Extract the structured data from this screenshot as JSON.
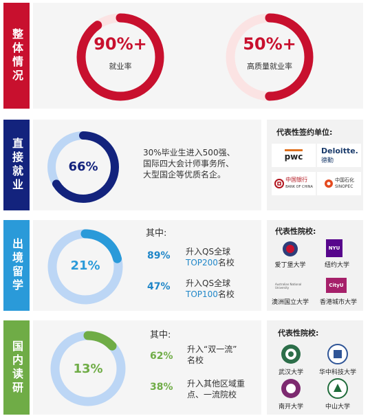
{
  "sections": {
    "overall": {
      "label": "整体情况",
      "color": "#c8102e",
      "ring1": {
        "value": "90%+",
        "caption": "就业率",
        "fraction": 0.9
      },
      "ring2": {
        "value": "50%+",
        "caption": "高质量就业率",
        "fraction": 0.5
      }
    },
    "employment": {
      "label": "直接就业",
      "color": "#13237d",
      "ring": {
        "value": "66%",
        "fraction": 0.66
      },
      "desc": [
        "30%毕业生进入500强、",
        "国际四大会计师事务所、",
        "大型国企等优质名企。"
      ],
      "box_title": "代表性签约单位:",
      "logos": {
        "pwc": "pwc",
        "deloitte": "Deloitte.",
        "deloitte_cn": "德勤",
        "boc_cn": "中国银行",
        "boc_en": "BANK OF CHINA",
        "sinopec_cn": "中国石化",
        "sinopec_en": "SINOPEC"
      }
    },
    "abroad": {
      "label": "出境留学",
      "color": "#2a9ad9",
      "ring": {
        "value": "21%",
        "fraction": 0.21
      },
      "of_which": "其中:",
      "items": [
        {
          "pct": "89%",
          "line1": "升入QS全球",
          "line2_hl": "TOP200",
          "line2_rest": "名校"
        },
        {
          "pct": "47%",
          "line1": "升入QS全球",
          "line2_hl": "TOP100",
          "line2_rest": "名校"
        }
      ],
      "box_title": "代表性院校:",
      "unis": [
        "爱丁堡大学",
        "纽约大学",
        "澳洲国立大学",
        "香港城市大学"
      ],
      "logo_text": {
        "nyu": "NYU",
        "anu": "Australian National University",
        "cityu": "CityU"
      }
    },
    "domestic": {
      "label": "国内读研",
      "color": "#6fac46",
      "ring": {
        "value": "13%",
        "fraction": 0.13
      },
      "of_which": "其中:",
      "items": [
        {
          "pct": "62%",
          "line1": "升入“双一流”",
          "line2": "名校"
        },
        {
          "pct": "38%",
          "line1": "升入其他区域重",
          "line2": "点、一流院校"
        }
      ],
      "box_title": "代表性院校:",
      "unis": [
        "武汉大学",
        "华中科技大学",
        "南开大学",
        "中山大学"
      ]
    }
  }
}
